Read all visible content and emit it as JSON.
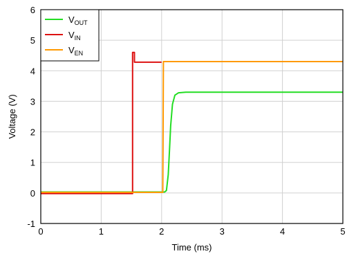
{
  "chart_data": {
    "type": "line",
    "title": "",
    "xlabel": "Time (ms)",
    "ylabel": "Voltage (V)",
    "xlim": [
      0,
      5
    ],
    "ylim": [
      -1,
      6
    ],
    "xticks": [
      "0",
      "1",
      "2",
      "3",
      "4",
      "5"
    ],
    "yticks": [
      "-1",
      "0",
      "1",
      "2",
      "3",
      "4",
      "5",
      "6"
    ],
    "grid": true,
    "legend_position": "top-left",
    "series": [
      {
        "name": "VOUT",
        "legend_main": "V",
        "legend_sub": "OUT",
        "color": "#22dd22",
        "x": [
          0,
          2.05,
          2.08,
          2.11,
          2.13,
          2.15,
          2.18,
          2.22,
          2.28,
          2.4,
          5
        ],
        "y": [
          0.03,
          0.03,
          0.08,
          0.6,
          1.4,
          2.2,
          2.9,
          3.2,
          3.28,
          3.3,
          3.3
        ]
      },
      {
        "name": "VIN",
        "legend_main": "V",
        "legend_sub": "IN",
        "color": "#dd1111",
        "x": [
          0,
          1.52,
          1.52,
          1.55,
          1.55,
          2.0
        ],
        "y": [
          -0.02,
          -0.02,
          4.6,
          4.6,
          4.28,
          4.28
        ]
      },
      {
        "name": "VEN",
        "legend_main": "V",
        "legend_sub": "EN",
        "color": "#ff9900",
        "x": [
          0,
          2.02,
          2.03,
          5
        ],
        "y": [
          0.02,
          0.02,
          4.3,
          4.3
        ]
      }
    ]
  }
}
